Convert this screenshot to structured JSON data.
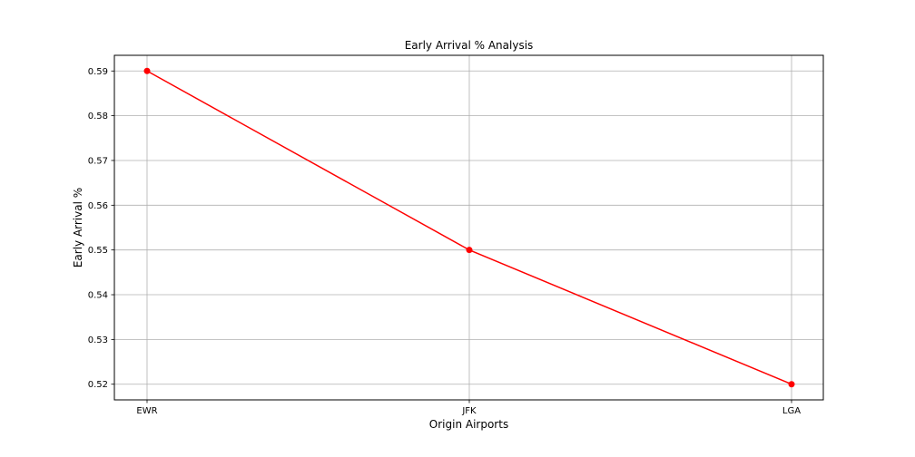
{
  "chart_data": {
    "type": "line",
    "title": "Early Arrival % Analysis",
    "xlabel": "Origin Airports",
    "ylabel": "Early Arrival %",
    "categories": [
      "EWR",
      "JFK",
      "LGA"
    ],
    "series": [
      {
        "values": [
          0.59,
          0.55,
          0.52
        ],
        "color": "#ff0000",
        "marker": "circle"
      }
    ],
    "yticks": [
      0.52,
      0.53,
      0.54,
      0.55,
      0.56,
      0.57,
      0.58,
      0.59
    ],
    "ytick_labels": [
      "0.52",
      "0.53",
      "0.54",
      "0.55",
      "0.56",
      "0.57",
      "0.58",
      "0.59"
    ],
    "ylim": [
      0.5165,
      0.5935
    ],
    "grid": true
  }
}
